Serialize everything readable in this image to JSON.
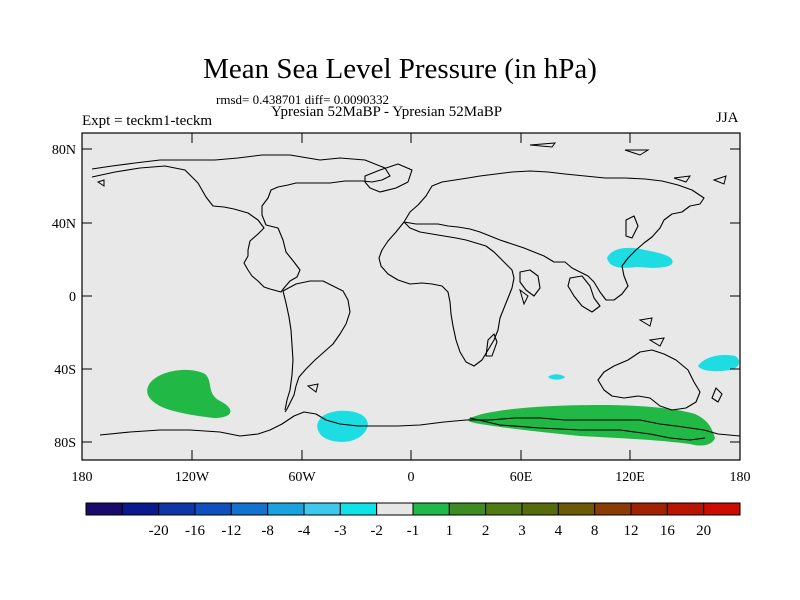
{
  "header": {
    "title": "Mean Sea Level Pressure (in hPa)",
    "stats": "rmsd= 0.438701 diff= 0.0090332",
    "subtitle": "Ypresian  52MaBP - Ypresian  52MaBP",
    "expt": "Expt = teckm1-teckm",
    "season": "JJA"
  },
  "map": {
    "background_color": "#e8e8e8",
    "lat_labels": [
      "80N",
      "40N",
      "0",
      "40S",
      "80S"
    ],
    "lon_labels": [
      "180",
      "120W",
      "60W",
      "0",
      "60E",
      "120E",
      "180"
    ]
  },
  "colorbar": {
    "colors": [
      "#1a0a6b",
      "#0a1a8c",
      "#0d36a8",
      "#0f4fbf",
      "#1372cf",
      "#1aa2e0",
      "#3ec9ec",
      "#0fe3e8",
      "#e6e6e6",
      "#20b84a",
      "#3c8c22",
      "#4f7a14",
      "#556b0c",
      "#6b5a06",
      "#8a3c04",
      "#a02200",
      "#b81400",
      "#cc0a00"
    ],
    "labels": [
      "-20",
      "-16",
      "-12",
      "-8",
      "-4",
      "-3",
      "-2",
      "-1",
      "1",
      "2",
      "3",
      "4",
      "8",
      "12",
      "16",
      "20"
    ]
  },
  "anomaly_colors": {
    "positive": "#22b845",
    "negative": "#1ddde2"
  }
}
